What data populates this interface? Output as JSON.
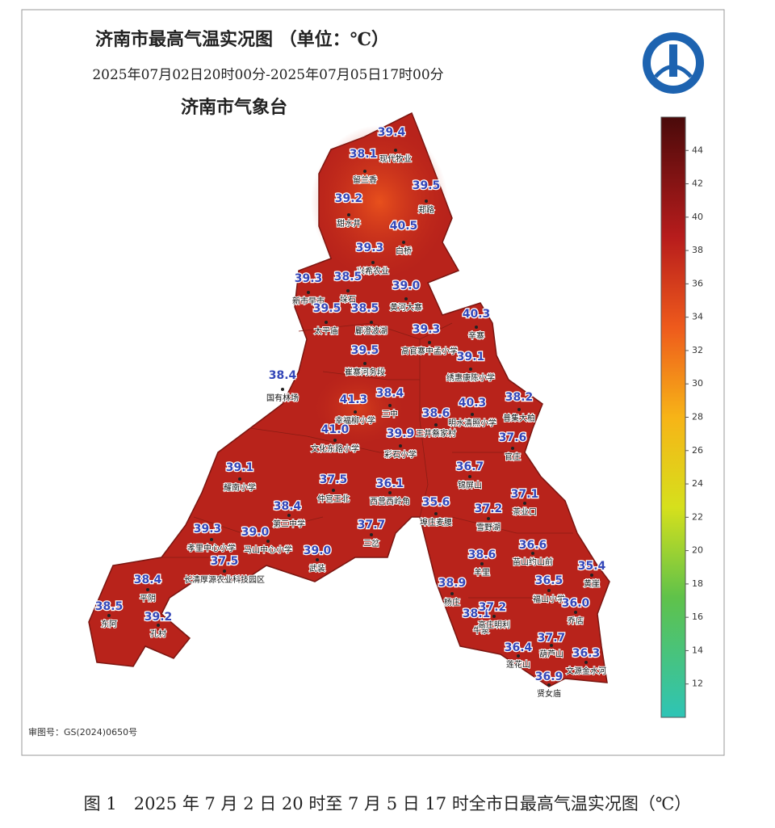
{
  "header": {
    "title": "济南市最高气温实况图 （单位：℃）",
    "period": "2025年07月02日20时00分-2025年07月05日17时00分",
    "agency": "济南市气象台"
  },
  "stations": [
    {
      "value": "39.4",
      "name": "现代牧业"
    },
    {
      "value": "38.1",
      "name": "留兰香"
    },
    {
      "value": "39.5",
      "name": "郑路"
    },
    {
      "value": "39.2",
      "name": "甜水井"
    },
    {
      "value": "40.5",
      "name": "白桥"
    },
    {
      "value": "39.3",
      "name": "兴希农业"
    },
    {
      "value": "39.3",
      "name": "新市早市"
    },
    {
      "value": "38.5",
      "name": "垛石"
    },
    {
      "value": "39.0",
      "name": "黄河大寨"
    },
    {
      "value": "39.5",
      "name": "太平庙"
    },
    {
      "value": "38.5",
      "name": "郿澄波湖"
    },
    {
      "value": "40.3",
      "name": "辛寨"
    },
    {
      "value": "39.3",
      "name": "高官寨中孟小学"
    },
    {
      "value": "39.5",
      "name": "崔寨河务段"
    },
    {
      "value": "39.1",
      "name": "绣惠康陈小学"
    },
    {
      "value": "38.4",
      "name": "国有林场"
    },
    {
      "value": "41.3",
      "name": "幸福柳小学"
    },
    {
      "value": "38.4",
      "name": "三中"
    },
    {
      "value": "40.3",
      "name": "明水清照小学"
    },
    {
      "value": "38.2",
      "name": "普集大柏"
    },
    {
      "value": "38.6",
      "name": "王井蔡家村"
    },
    {
      "value": "41.0",
      "name": "文化东路小学"
    },
    {
      "value": "39.9",
      "name": "彩石小学"
    },
    {
      "value": "37.6",
      "name": "官庄"
    },
    {
      "value": "39.1",
      "name": "耀南小学"
    },
    {
      "value": "37.5",
      "name": "仲宫王北"
    },
    {
      "value": "36.1",
      "name": "西营西岭角"
    },
    {
      "value": "36.7",
      "name": "锦屏山"
    },
    {
      "value": "35.6",
      "name": "埠庄麦腰"
    },
    {
      "value": "37.1",
      "name": "茶业口"
    },
    {
      "value": "38.4",
      "name": "第三中学"
    },
    {
      "value": "37.2",
      "name": "雪野湖"
    },
    {
      "value": "37.7",
      "name": "三岔"
    },
    {
      "value": "39.3",
      "name": "孝里中心小学"
    },
    {
      "value": "39.0",
      "name": "马山中心小学"
    },
    {
      "value": "39.0",
      "name": "武装"
    },
    {
      "value": "36.6",
      "name": "苗山约山前"
    },
    {
      "value": "37.5",
      "name": "长清厚源农业科技园区"
    },
    {
      "value": "38.6",
      "name": "羊里"
    },
    {
      "value": "35.4",
      "name": "黄崖"
    },
    {
      "value": "38.4",
      "name": "平阴"
    },
    {
      "value": "36.5",
      "name": "福山小学"
    },
    {
      "value": "38.9",
      "name": "杨庄"
    },
    {
      "value": "36.0",
      "name": "乔店"
    },
    {
      "value": "38.5",
      "name": "东阿"
    },
    {
      "value": "39.2",
      "name": "孔村"
    },
    {
      "value": "38.1",
      "name": "牛泉"
    },
    {
      "value": "37.2",
      "name": "高庄明利"
    },
    {
      "value": "37.7",
      "name": "葫芦山"
    },
    {
      "value": "36.4",
      "name": "莲花山"
    },
    {
      "value": "36.3",
      "name": "文源金水河"
    },
    {
      "value": "36.9",
      "name": "贤女庙"
    }
  ],
  "colorbar": {
    "range": [
      10,
      46
    ],
    "ticks": [
      12,
      14,
      16,
      18,
      20,
      22,
      24,
      26,
      28,
      30,
      32,
      34,
      36,
      38,
      40,
      42,
      44
    ]
  },
  "review_number": "审图号：GS(2024)0650号",
  "caption": "图 1　2025 年 7 月 2 日 20 时至 7 月 5 日 17 时全市日最高气温实况图（℃）"
}
